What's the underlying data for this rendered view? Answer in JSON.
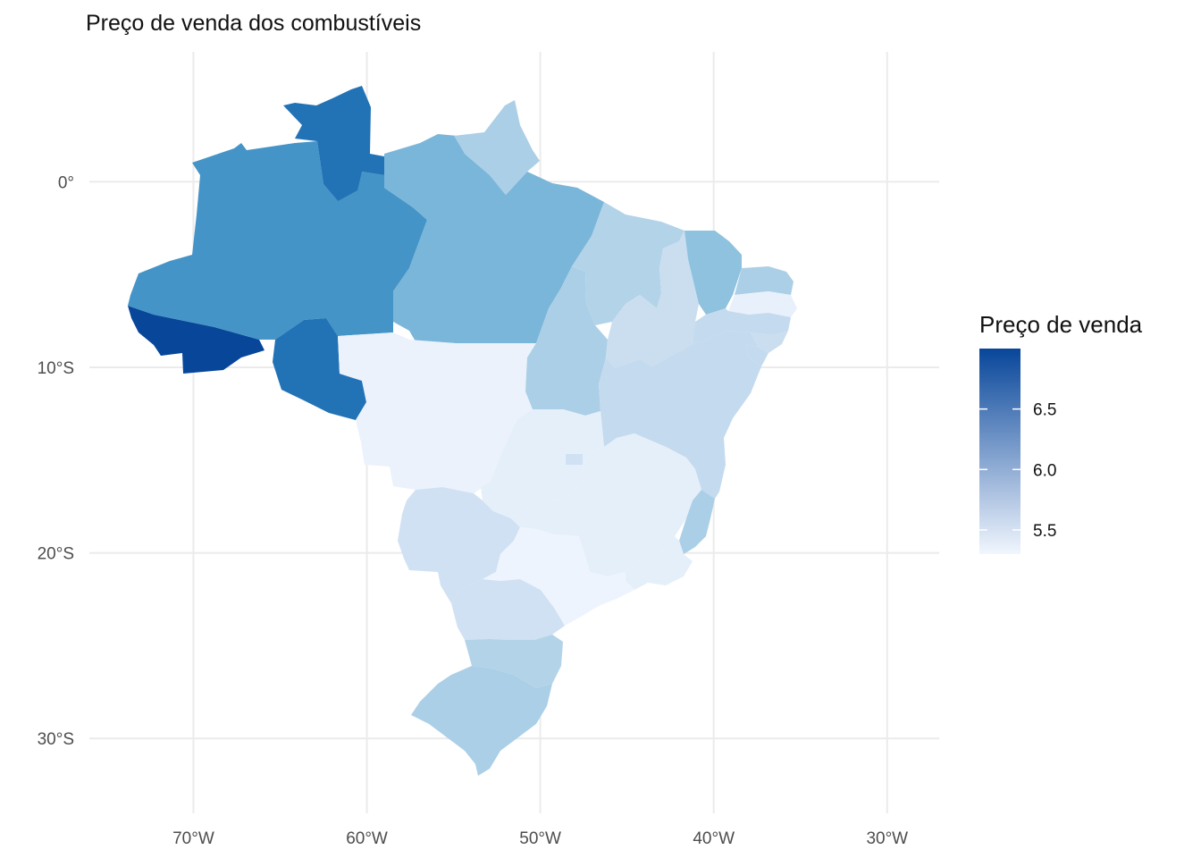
{
  "title": "Preço de venda dos combustíveis",
  "chart_data": {
    "type": "choropleth",
    "title": "Preço de venda dos combustíveis",
    "xlim": [
      -76,
      -27
    ],
    "ylim": [
      -35,
      7
    ],
    "x_ticks": [
      {
        "value": -70,
        "label": "70°W"
      },
      {
        "value": -60,
        "label": "60°W"
      },
      {
        "value": -50,
        "label": "50°W"
      },
      {
        "value": -40,
        "label": "40°W"
      },
      {
        "value": -30,
        "label": "30°W"
      }
    ],
    "y_ticks": [
      {
        "value": 0,
        "label": "0°"
      },
      {
        "value": -10,
        "label": "10°S"
      },
      {
        "value": -20,
        "label": "20°S"
      },
      {
        "value": -30,
        "label": "30°S"
      }
    ],
    "grid": true,
    "legend": {
      "title": "Preço de venda",
      "position": "right",
      "min": 5.3,
      "max": 7.0,
      "low_color": "#f1f6fe",
      "high_color": "#08469a",
      "ticks": [
        {
          "value": 5.5,
          "label": "5.5"
        },
        {
          "value": 6.0,
          "label": "6.0"
        },
        {
          "value": 6.5,
          "label": "6.5"
        }
      ]
    },
    "colors": {
      "grid": "#ebebeb",
      "ramp": [
        "#f1f6fe",
        "#e2edf9",
        "#c6dbef",
        "#9ecae1",
        "#6baed6",
        "#4292c6",
        "#2171b5",
        "#08469a"
      ]
    },
    "regions": [
      {
        "id": "AC",
        "value": 7.0
      },
      {
        "id": "RR",
        "value": 6.75
      },
      {
        "id": "RO",
        "value": 6.75
      },
      {
        "id": "AM",
        "value": 6.5
      },
      {
        "id": "PA",
        "value": 6.2
      },
      {
        "id": "AP",
        "value": 5.95
      },
      {
        "id": "TO",
        "value": 5.95
      },
      {
        "id": "MA",
        "value": 5.9
      },
      {
        "id": "PI",
        "value": 5.75
      },
      {
        "id": "CE",
        "value": 6.1
      },
      {
        "id": "RN",
        "value": 5.95
      },
      {
        "id": "PB",
        "value": 5.45
      },
      {
        "id": "PE",
        "value": 5.8
      },
      {
        "id": "AL",
        "value": 5.75
      },
      {
        "id": "SE",
        "value": 5.8
      },
      {
        "id": "BA",
        "value": 5.8
      },
      {
        "id": "MT",
        "value": 5.4
      },
      {
        "id": "GO",
        "value": 5.5
      },
      {
        "id": "DF",
        "value": 5.7
      },
      {
        "id": "MS",
        "value": 5.7
      },
      {
        "id": "MG",
        "value": 5.5
      },
      {
        "id": "ES",
        "value": 5.95
      },
      {
        "id": "RJ",
        "value": 5.5
      },
      {
        "id": "SP",
        "value": 5.35
      },
      {
        "id": "PR",
        "value": 5.7
      },
      {
        "id": "SC",
        "value": 5.9
      },
      {
        "id": "RS",
        "value": 5.95
      }
    ]
  }
}
